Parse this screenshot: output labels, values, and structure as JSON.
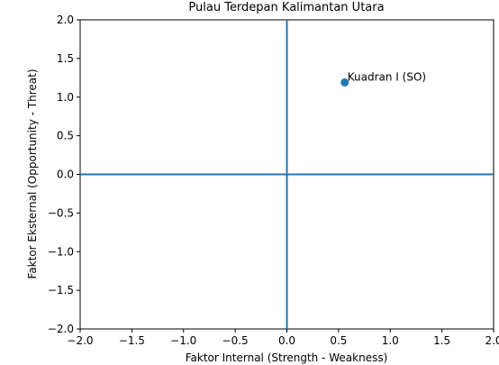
{
  "chart_data": {
    "type": "scatter",
    "title": "Pulau Terdepan Kalimantan Utara",
    "xlabel": "Faktor Internal (Strength - Weakness)",
    "ylabel": "Faktor Eksternal (Opportunity - Threat)",
    "xlim": [
      -2.0,
      2.0
    ],
    "ylim": [
      -2.0,
      2.0
    ],
    "x_ticks": [
      -2.0,
      -1.5,
      -1.0,
      -0.5,
      0.0,
      0.5,
      1.0,
      1.5,
      2.0
    ],
    "y_ticks": [
      -2.0,
      -1.5,
      -1.0,
      -0.5,
      0.0,
      0.5,
      1.0,
      1.5,
      2.0
    ],
    "x_tick_labels": [
      "−2.0",
      "−1.5",
      "−1.0",
      "−0.5",
      "0.0",
      "0.5",
      "1.0",
      "1.5",
      "2.0"
    ],
    "y_tick_labels": [
      "−2.0",
      "−1.5",
      "−1.0",
      "−0.5",
      "0.0",
      "0.5",
      "1.0",
      "1.5",
      "2.0"
    ],
    "grid": false,
    "reference_lines": {
      "x": 0.0,
      "y": 0.0
    },
    "points": [
      {
        "x": 0.56,
        "y": 1.19,
        "label": "Kuadran I (SO)"
      }
    ],
    "colors": {
      "line": "#1f77b4",
      "point": "#1f77b4"
    }
  }
}
